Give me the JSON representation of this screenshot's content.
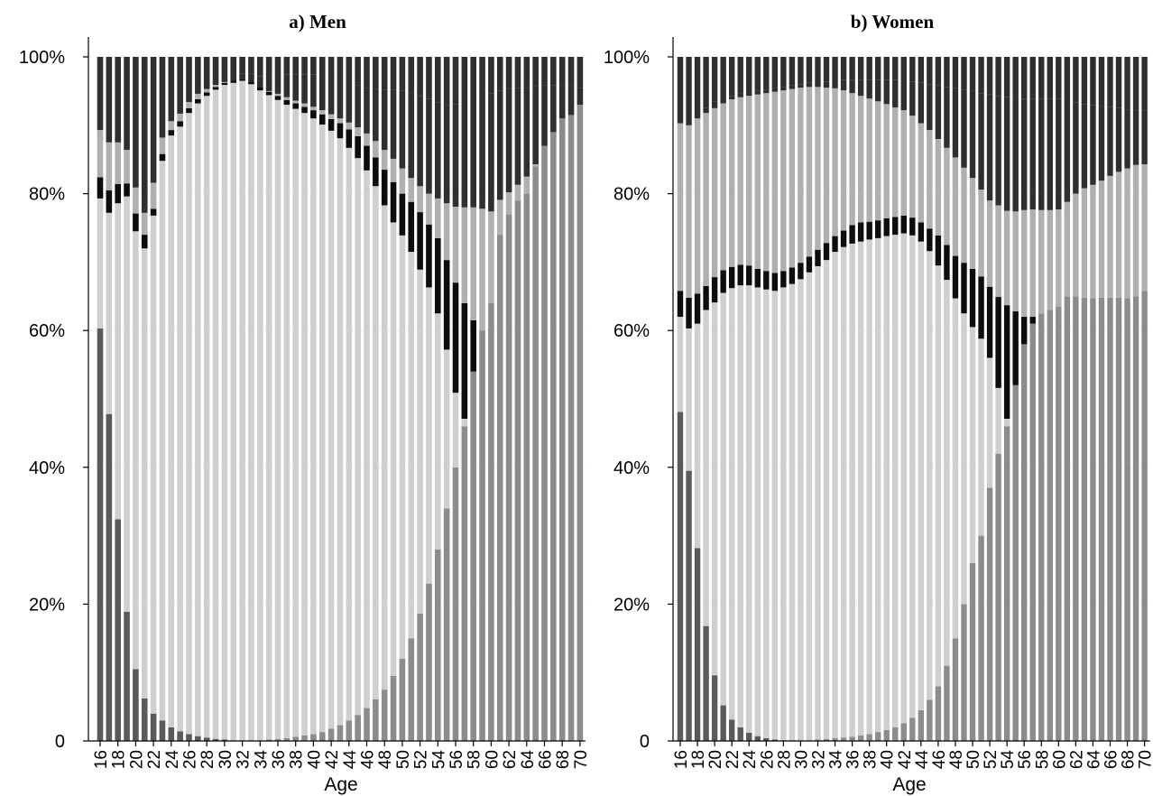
{
  "figure": {
    "panels": [
      {
        "title": "a)   Men",
        "xlabel": "Age"
      },
      {
        "title": "b)   Women",
        "xlabel": "Age"
      }
    ]
  },
  "chart_data": [
    {
      "type": "bar",
      "stacked": true,
      "normalized": true,
      "title": "a)   Men",
      "xlabel": "Age",
      "ylabel": "",
      "ylim": [
        0,
        100
      ],
      "yticks": [
        0,
        20,
        40,
        60,
        80,
        100
      ],
      "ytick_labels": [
        "0",
        "20%",
        "40%",
        "60%",
        "80%",
        "100%"
      ],
      "x": [
        16,
        17,
        18,
        19,
        20,
        21,
        22,
        23,
        24,
        25,
        26,
        27,
        28,
        29,
        30,
        31,
        32,
        33,
        34,
        35,
        36,
        37,
        38,
        39,
        40,
        41,
        42,
        43,
        44,
        45,
        46,
        47,
        48,
        49,
        50,
        51,
        52,
        53,
        54,
        55,
        56,
        57,
        58,
        59,
        60,
        61,
        62,
        63,
        64,
        65,
        66,
        67,
        68,
        69,
        70
      ],
      "xtick_labels": [
        "16",
        "18",
        "20",
        "22",
        "24",
        "26",
        "28",
        "30",
        "32",
        "34",
        "36",
        "38",
        "40",
        "42",
        "44",
        "46",
        "48",
        "50",
        "52",
        "54",
        "56",
        "58",
        "60",
        "62",
        "64",
        "66",
        "68",
        "70"
      ],
      "grid": false,
      "legend": "none",
      "series_colors": [
        "#5a5a5a",
        "#8c8c8c",
        "#cfcfcf",
        "#0d0d0d",
        "#b0b0b0",
        "#2f2f2f"
      ],
      "boundaries": [
        [
          60.3,
          47.8,
          32.4,
          18.9,
          10.5,
          6.2,
          4.0,
          3.0,
          2.0,
          1.4,
          1.0,
          0.7,
          0.5,
          0.3,
          0.2,
          0.1,
          0.1,
          0.1,
          0.0,
          0.0,
          0.0,
          0.0,
          0.0,
          0.0,
          0.0,
          0.0,
          0.0,
          0.0,
          0.0,
          0.0,
          0.0,
          0.0,
          0.0,
          0.0,
          0.0,
          0.0,
          0.0,
          0.0,
          0.0,
          0.0,
          0.0,
          0.0,
          0.0,
          0.0,
          0.0,
          0.0,
          0.0,
          0.0,
          0.0,
          0.0,
          0.0,
          0.0,
          0.0,
          0.0,
          0.0
        ],
        [
          60.3,
          47.8,
          32.4,
          18.9,
          10.5,
          6.2,
          4.0,
          3.0,
          2.0,
          1.4,
          1.0,
          0.7,
          0.5,
          0.3,
          0.2,
          0.1,
          0.1,
          0.1,
          0.1,
          0.2,
          0.3,
          0.4,
          0.6,
          0.8,
          1.0,
          1.3,
          1.8,
          2.3,
          3.0,
          3.8,
          4.8,
          6.1,
          7.5,
          9.5,
          12.0,
          15.0,
          18.6,
          23.0,
          28.0,
          34.0,
          40.0,
          46.0,
          54.0,
          60.0,
          64.0,
          74.0,
          77.0,
          79.0,
          80.0,
          84.0,
          87.0,
          89.0,
          91.0,
          91.5,
          93.0
        ],
        [
          79.3,
          77.2,
          78.6,
          79.6,
          74.5,
          72.0,
          76.8,
          84.8,
          88.5,
          89.8,
          91.8,
          93.2,
          94.3,
          95.2,
          95.9,
          96.2,
          96.5,
          96.0,
          95.1,
          94.4,
          93.7,
          93.0,
          92.4,
          91.8,
          91.0,
          90.1,
          89.2,
          88.1,
          86.7,
          85.2,
          83.4,
          81.1,
          78.3,
          75.8,
          73.9,
          71.5,
          68.9,
          66.3,
          62.5,
          57.2,
          50.9,
          47.1,
          44.7,
          42.5,
          32.3,
          23.1,
          21.1,
          19.0,
          17.8,
          12.7,
          8.9,
          7.7,
          7.2,
          6.4,
          4.0
        ],
        [
          82.4,
          80.5,
          81.4,
          81.5,
          77.1,
          74.0,
          77.8,
          85.8,
          89.3,
          90.6,
          92.5,
          93.8,
          94.8,
          95.6,
          96.2,
          96.5,
          96.8,
          96.4,
          95.6,
          94.9,
          94.3,
          93.7,
          93.2,
          92.7,
          92.2,
          91.6,
          90.9,
          90.3,
          89.4,
          88.4,
          87.0,
          85.3,
          83.5,
          81.7,
          80.0,
          78.8,
          77.3,
          75.5,
          73.5,
          70.3,
          67.0,
          64.0,
          61.5,
          59.5,
          58.0,
          60.0,
          62.0,
          63.0,
          64.2,
          66.0,
          68.0,
          69.0,
          70.0,
          71.0,
          72.0
        ],
        [
          89.3,
          87.5,
          87.5,
          86.4,
          80.9,
          77.2,
          81.6,
          88.2,
          90.6,
          91.7,
          93.4,
          94.6,
          95.3,
          95.9,
          96.3,
          96.4,
          96.1,
          95.8,
          95.4,
          95.0,
          94.6,
          94.1,
          93.6,
          93.2,
          92.7,
          92.2,
          91.6,
          91.0,
          90.4,
          89.7,
          88.8,
          87.7,
          86.4,
          85.1,
          83.7,
          82.3,
          81.1,
          80.0,
          79.3,
          78.6,
          78.1,
          78.0,
          78.0,
          77.8,
          77.4,
          79.1,
          80.2,
          81.3,
          82.5,
          84.3,
          85.8,
          86.4,
          87.1,
          87.4,
          87.0
        ],
        [
          89.3,
          87.5,
          87.5,
          86.4,
          80.9,
          77.2,
          81.6,
          88.2,
          90.6,
          91.7,
          93.4,
          94.6,
          95.3,
          95.9,
          96.4,
          97.1,
          97.6,
          97.6,
          97.2,
          97.1,
          97.3,
          97.4,
          97.4,
          97.4,
          97.4,
          97.3,
          97.1,
          96.7,
          96.3,
          95.9,
          95.5,
          95.3,
          95.2,
          95.2,
          95.1,
          94.8,
          94.3,
          93.9,
          93.3,
          93.0,
          93.1,
          93.6,
          94.0,
          94.4,
          94.7,
          95.1,
          95.3,
          95.4,
          95.5,
          95.7,
          95.9,
          95.8,
          95.9,
          95.9,
          95.5
        ]
      ]
    },
    {
      "type": "bar",
      "stacked": true,
      "normalized": true,
      "title": "b)   Women",
      "xlabel": "Age",
      "ylabel": "",
      "ylim": [
        0,
        100
      ],
      "yticks": [
        0,
        20,
        40,
        60,
        80,
        100
      ],
      "ytick_labels": [
        "0",
        "20%",
        "40%",
        "60%",
        "80%",
        "100%"
      ],
      "x": [
        16,
        17,
        18,
        19,
        20,
        21,
        22,
        23,
        24,
        25,
        26,
        27,
        28,
        29,
        30,
        31,
        32,
        33,
        34,
        35,
        36,
        37,
        38,
        39,
        40,
        41,
        42,
        43,
        44,
        45,
        46,
        47,
        48,
        49,
        50,
        51,
        52,
        53,
        54,
        55,
        56,
        57,
        58,
        59,
        60,
        61,
        62,
        63,
        64,
        65,
        66,
        67,
        68,
        69,
        70
      ],
      "xtick_labels": [
        "16",
        "18",
        "20",
        "22",
        "24",
        "26",
        "28",
        "30",
        "32",
        "34",
        "36",
        "38",
        "40",
        "42",
        "44",
        "46",
        "48",
        "50",
        "52",
        "54",
        "56",
        "58",
        "60",
        "62",
        "64",
        "66",
        "68",
        "70"
      ],
      "grid": false,
      "legend": "none",
      "series_colors": [
        "#5a5a5a",
        "#8c8c8c",
        "#cfcfcf",
        "#0d0d0d",
        "#b0b0b0",
        "#2f2f2f"
      ],
      "boundaries": [
        [
          48.1,
          39.5,
          28.2,
          16.8,
          9.6,
          5.2,
          3.1,
          2.0,
          1.2,
          0.7,
          0.4,
          0.2,
          0.1,
          0.1,
          0.0,
          0.0,
          0.0,
          0.0,
          0.0,
          0.0,
          0.0,
          0.0,
          0.0,
          0.0,
          0.0,
          0.0,
          0.0,
          0.0,
          0.0,
          0.0,
          0.0,
          0.0,
          0.0,
          0.0,
          0.0,
          0.0,
          0.0,
          0.0,
          0.0,
          0.0,
          0.0,
          0.0,
          0.0,
          0.0,
          0.0,
          0.0,
          0.0,
          0.0,
          0.0,
          0.0,
          0.0,
          0.0,
          0.0,
          0.0,
          0.0
        ],
        [
          48.1,
          39.5,
          28.2,
          16.8,
          9.6,
          5.2,
          3.1,
          2.0,
          1.2,
          0.7,
          0.4,
          0.2,
          0.1,
          0.1,
          0.1,
          0.1,
          0.2,
          0.3,
          0.4,
          0.5,
          0.6,
          0.8,
          1.0,
          1.3,
          1.6,
          2.0,
          2.6,
          3.4,
          4.5,
          6.0,
          8.0,
          11.0,
          15.0,
          20.0,
          26.0,
          30.0,
          37.0,
          42.0,
          46.0,
          52.0,
          58.0,
          61.0,
          62.5,
          63.0,
          63.5,
          65.0,
          65.0,
          64.8,
          64.7,
          64.8,
          64.8,
          64.8,
          64.7,
          65.0,
          65.8
        ],
        [
          62.0,
          60.3,
          61.0,
          63.0,
          64.1,
          65.5,
          66.2,
          66.6,
          66.6,
          66.3,
          66.0,
          65.8,
          66.3,
          66.8,
          67.5,
          68.5,
          69.4,
          70.3,
          71.5,
          72.2,
          72.7,
          73.0,
          73.3,
          73.5,
          73.8,
          74.0,
          74.2,
          73.9,
          73.0,
          71.6,
          69.5,
          67.4,
          64.7,
          62.5,
          60.5,
          58.8,
          56.0,
          51.6,
          47.1,
          43.0,
          38.3,
          27.6,
          23.4,
          20.7,
          18.7,
          11.5,
          8.9,
          6.9,
          6.1,
          4.9,
          4.0,
          2.6,
          2.2,
          1.9,
          1.6
        ],
        [
          65.8,
          64.8,
          65.4,
          66.5,
          67.8,
          68.8,
          69.3,
          69.6,
          69.5,
          69.0,
          68.7,
          68.4,
          68.7,
          69.2,
          69.9,
          70.8,
          71.8,
          72.8,
          73.8,
          74.6,
          75.4,
          75.8,
          75.9,
          76.1,
          76.4,
          76.6,
          76.8,
          76.5,
          75.8,
          74.9,
          73.9,
          72.5,
          70.9,
          69.9,
          69.0,
          67.9,
          66.4,
          64.9,
          63.7,
          62.8,
          62.0,
          62.0,
          62.5,
          63.0,
          63.2,
          64.5,
          64.7,
          64.6,
          64.5,
          64.4,
          64.5,
          64.6,
          64.6,
          64.8,
          65.8
        ],
        [
          90.3,
          90.0,
          91.0,
          91.8,
          92.5,
          93.2,
          93.8,
          94.1,
          94.3,
          94.5,
          94.7,
          94.9,
          95.1,
          95.3,
          95.5,
          95.6,
          95.6,
          95.5,
          95.4,
          95.1,
          94.7,
          94.3,
          93.9,
          93.5,
          93.1,
          92.6,
          92.2,
          91.4,
          90.3,
          89.3,
          88.0,
          86.7,
          85.3,
          83.8,
          82.3,
          80.6,
          79.0,
          78.3,
          77.5,
          77.4,
          77.6,
          77.7,
          77.6,
          77.6,
          77.7,
          78.8,
          80.0,
          80.8,
          81.3,
          81.9,
          82.6,
          83.2,
          83.7,
          84.2,
          84.3
        ],
        [
          90.3,
          90.0,
          91.0,
          92.5,
          93.5,
          94.0,
          94.3,
          94.6,
          94.8,
          95.0,
          95.2,
          95.4,
          95.6,
          95.8,
          96.0,
          96.2,
          96.3,
          96.4,
          96.5,
          96.6,
          96.6,
          96.6,
          96.6,
          96.6,
          96.6,
          96.6,
          96.5,
          96.4,
          96.2,
          96.0,
          95.8,
          95.6,
          95.4,
          95.2,
          95.0,
          94.7,
          94.5,
          94.3,
          94.1,
          94.0,
          93.9,
          93.9,
          93.9,
          93.9,
          93.9,
          93.6,
          93.3,
          93.1,
          92.9,
          92.8,
          92.7,
          92.5,
          92.3,
          92.2,
          92.1
        ]
      ]
    }
  ]
}
